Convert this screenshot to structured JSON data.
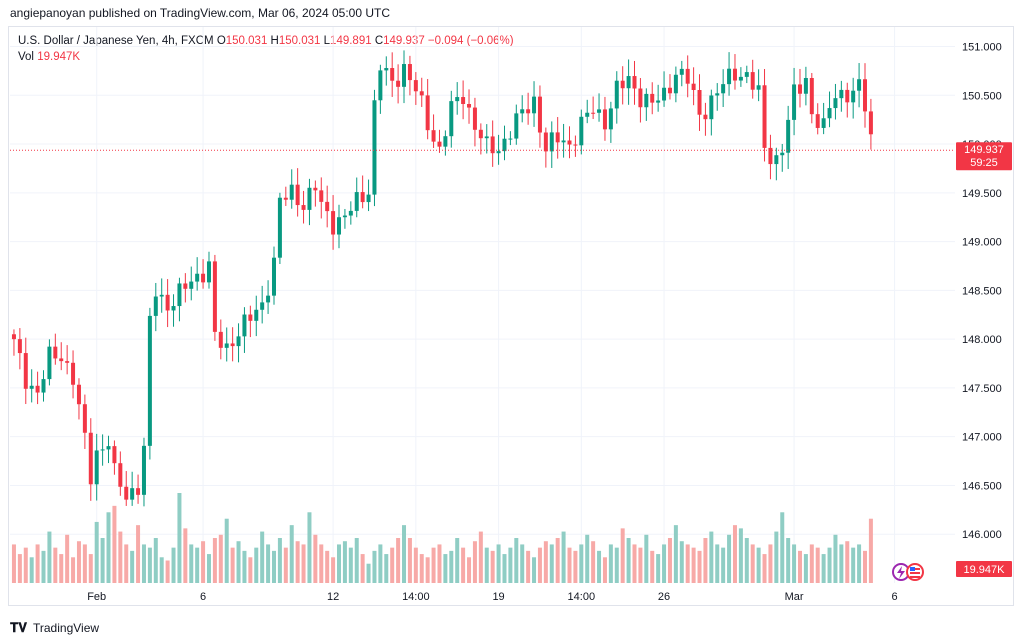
{
  "header": {
    "published": "angiepanoyan published on TradingView.com, Mar 06, 2024 05:00 UTC"
  },
  "legend": {
    "symbol": "U.S. Dollar / Japanese Yen, 4h, FXCM",
    "o_label": "O",
    "o": "150.031",
    "h_label": "H",
    "h": "150.031",
    "l_label": "L",
    "l": "149.891",
    "c_label": "C",
    "c": "149.937",
    "change": "−0.094 (−0.06%)",
    "vol_label": "Vol",
    "vol": "19.947K"
  },
  "price_label": {
    "price": "149.937",
    "countdown": "59:25"
  },
  "vol_label_badge": "19.947K",
  "footer": {
    "brand": "TradingView"
  },
  "colors": {
    "up": "#089981",
    "down": "#f23645",
    "vol_up": "#8fcdc4",
    "vol_down": "#f7a9a7"
  },
  "chart_data": {
    "type": "candlestick",
    "ylim": [
      145.5,
      151.2
    ],
    "y_ticks": [
      "146.000",
      "146.500",
      "147.000",
      "147.500",
      "148.000",
      "148.500",
      "149.000",
      "149.500",
      "150.000",
      "150.500",
      "151.000"
    ],
    "x_ticks": [
      {
        "label": "Feb",
        "index": 14
      },
      {
        "label": "6",
        "index": 32
      },
      {
        "label": "12",
        "index": 54
      },
      {
        "label": "14:00",
        "index": 68
      },
      {
        "label": "19",
        "index": 82
      },
      {
        "label": "14:00",
        "index": 96
      },
      {
        "label": "26",
        "index": 110
      },
      {
        "label": "Mar",
        "index": 132
      },
      {
        "label": "6",
        "index": 149
      }
    ],
    "close_points": [
      [
        0,
        147.95
      ],
      [
        2,
        147.6
      ],
      [
        4,
        147.45
      ],
      [
        6,
        147.8
      ],
      [
        8,
        147.85
      ],
      [
        10,
        147.6
      ],
      [
        12,
        146.95
      ],
      [
        13,
        146.6
      ],
      [
        14,
        146.85
      ],
      [
        16,
        146.95
      ],
      [
        17,
        146.6
      ],
      [
        19,
        146.4
      ],
      [
        21,
        146.5
      ],
      [
        22,
        146.85
      ],
      [
        23,
        148.15
      ],
      [
        24,
        148.5
      ],
      [
        26,
        148.35
      ],
      [
        28,
        148.45
      ],
      [
        30,
        148.6
      ],
      [
        32,
        148.7
      ],
      [
        33,
        148.75
      ],
      [
        34,
        148.0
      ],
      [
        36,
        147.9
      ],
      [
        38,
        148.1
      ],
      [
        40,
        148.2
      ],
      [
        42,
        148.35
      ],
      [
        44,
        148.8
      ],
      [
        45,
        149.4
      ],
      [
        47,
        149.5
      ],
      [
        49,
        149.4
      ],
      [
        51,
        149.55
      ],
      [
        52,
        149.35
      ],
      [
        54,
        149.2
      ],
      [
        56,
        149.25
      ],
      [
        58,
        149.4
      ],
      [
        60,
        149.55
      ],
      [
        61,
        150.4
      ],
      [
        62,
        150.8
      ],
      [
        64,
        150.6
      ],
      [
        66,
        150.8
      ],
      [
        68,
        150.55
      ],
      [
        70,
        150.2
      ],
      [
        72,
        149.95
      ],
      [
        74,
        150.35
      ],
      [
        76,
        150.5
      ],
      [
        78,
        150.2
      ],
      [
        80,
        149.95
      ],
      [
        82,
        149.95
      ],
      [
        84,
        150.15
      ],
      [
        86,
        150.3
      ],
      [
        88,
        150.45
      ],
      [
        89,
        150.2
      ],
      [
        90,
        149.95
      ],
      [
        92,
        150.05
      ],
      [
        94,
        150.0
      ],
      [
        96,
        150.2
      ],
      [
        98,
        150.35
      ],
      [
        100,
        150.25
      ],
      [
        102,
        150.55
      ],
      [
        104,
        150.65
      ],
      [
        106,
        150.5
      ],
      [
        108,
        150.4
      ],
      [
        110,
        150.5
      ],
      [
        112,
        150.75
      ],
      [
        114,
        150.65
      ],
      [
        116,
        150.3
      ],
      [
        118,
        150.45
      ],
      [
        120,
        150.6
      ],
      [
        122,
        150.75
      ],
      [
        124,
        150.7
      ],
      [
        126,
        150.5
      ],
      [
        127,
        149.95
      ],
      [
        129,
        149.85
      ],
      [
        130,
        149.95
      ],
      [
        132,
        150.5
      ],
      [
        134,
        150.7
      ],
      [
        135,
        150.3
      ],
      [
        137,
        150.15
      ],
      [
        139,
        150.55
      ],
      [
        141,
        150.5
      ],
      [
        143,
        150.55
      ],
      [
        144,
        150.4
      ],
      [
        145,
        150.1
      ],
      [
        147,
        150.05
      ],
      [
        148,
        149.94
      ]
    ],
    "volume": [
      60,
      45,
      55,
      40,
      60,
      50,
      80,
      55,
      45,
      75,
      40,
      65,
      60,
      45,
      95,
      70,
      110,
      120,
      80,
      60,
      50,
      90,
      60,
      55,
      70,
      40,
      35,
      55,
      140,
      85,
      60,
      55,
      65,
      45,
      70,
      75,
      100,
      55,
      65,
      50,
      40,
      55,
      80,
      60,
      50,
      70,
      55,
      90,
      65,
      60,
      110,
      75,
      60,
      50,
      40,
      60,
      65,
      55,
      70,
      45,
      30,
      50,
      60,
      45,
      55,
      70,
      90,
      70,
      55,
      45,
      40,
      55,
      60,
      45,
      50,
      70,
      55,
      40,
      65,
      80,
      55,
      50,
      60,
      45,
      55,
      70,
      60,
      50,
      40,
      55,
      65,
      60,
      70,
      80,
      55,
      50,
      60,
      75,
      65,
      50,
      40,
      60,
      55,
      85,
      70,
      60,
      55,
      75,
      50,
      45,
      60,
      70,
      90,
      65,
      60,
      55,
      50,
      70,
      80,
      60,
      55,
      75,
      90,
      85,
      70,
      60,
      55,
      45,
      60,
      80,
      110,
      70,
      60,
      50,
      45,
      60,
      55,
      45,
      55,
      75,
      60,
      65,
      55,
      60,
      50,
      100
    ]
  }
}
